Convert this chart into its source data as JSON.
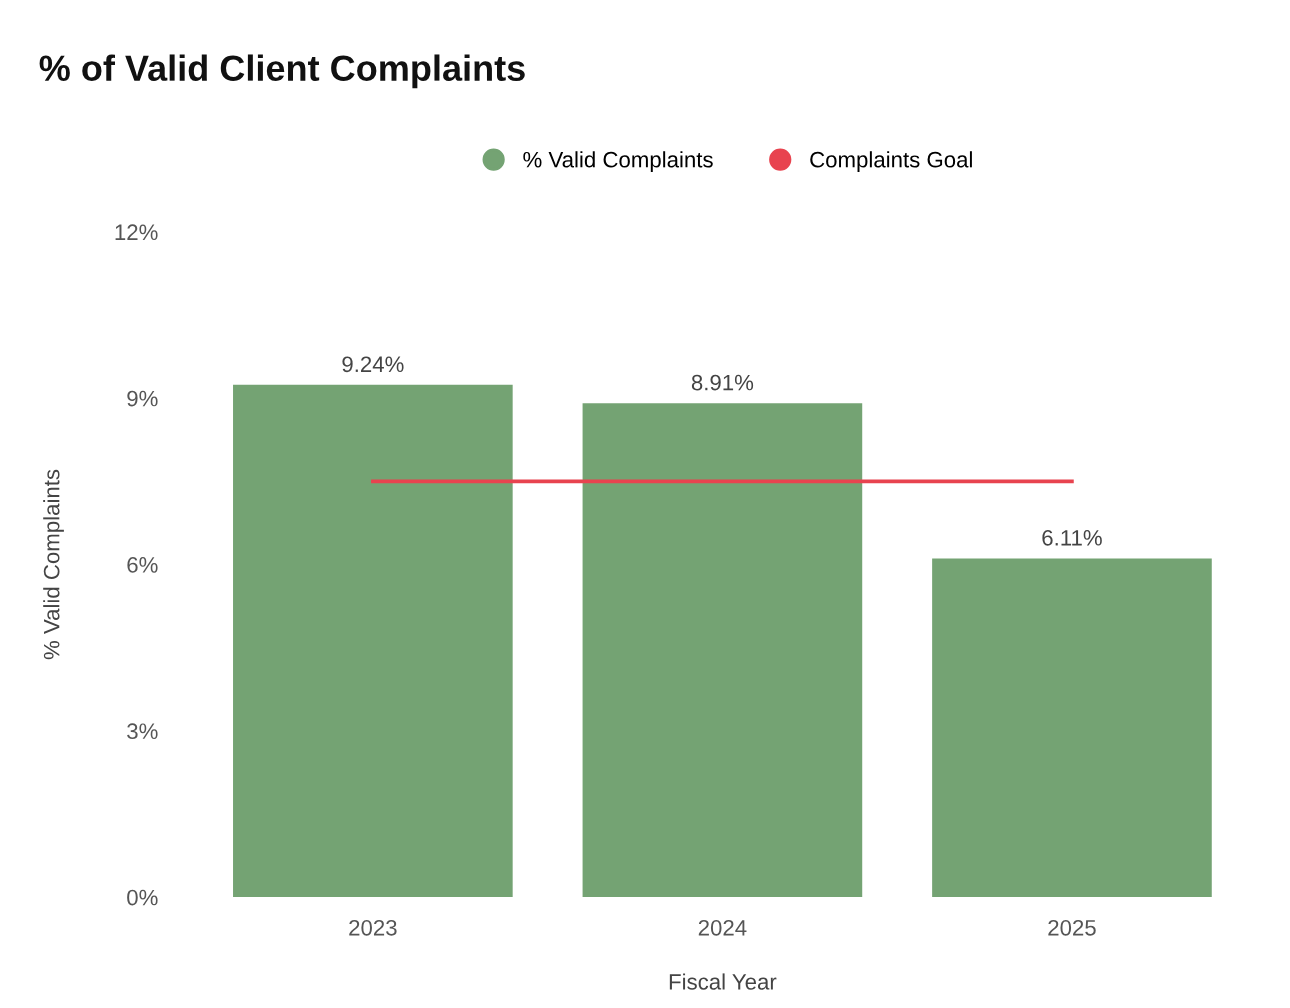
{
  "chart_data": {
    "type": "bar",
    "title": "% of Valid Client Complaints",
    "xlabel": "Fiscal Year",
    "ylabel": "% Valid Complaints",
    "categories": [
      "2023",
      "2024",
      "2025"
    ],
    "series": [
      {
        "name": "% Valid Complaints",
        "color": "#74a373",
        "values": [
          9.24,
          8.91,
          6.11
        ],
        "value_labels": [
          "9.24%",
          "8.91%",
          "6.11%"
        ]
      },
      {
        "name": "Complaints Goal",
        "type": "line",
        "color": "#e8434f",
        "values": [
          7.5,
          7.5,
          7.5
        ]
      }
    ],
    "ylim": [
      0,
      12
    ],
    "yticks": [
      {
        "value": 0,
        "label": "0%"
      },
      {
        "value": 3,
        "label": "3%"
      },
      {
        "value": 6,
        "label": "6%"
      },
      {
        "value": 9,
        "label": "9%"
      },
      {
        "value": 12,
        "label": "12%"
      }
    ],
    "grid": false,
    "legend": "top"
  }
}
